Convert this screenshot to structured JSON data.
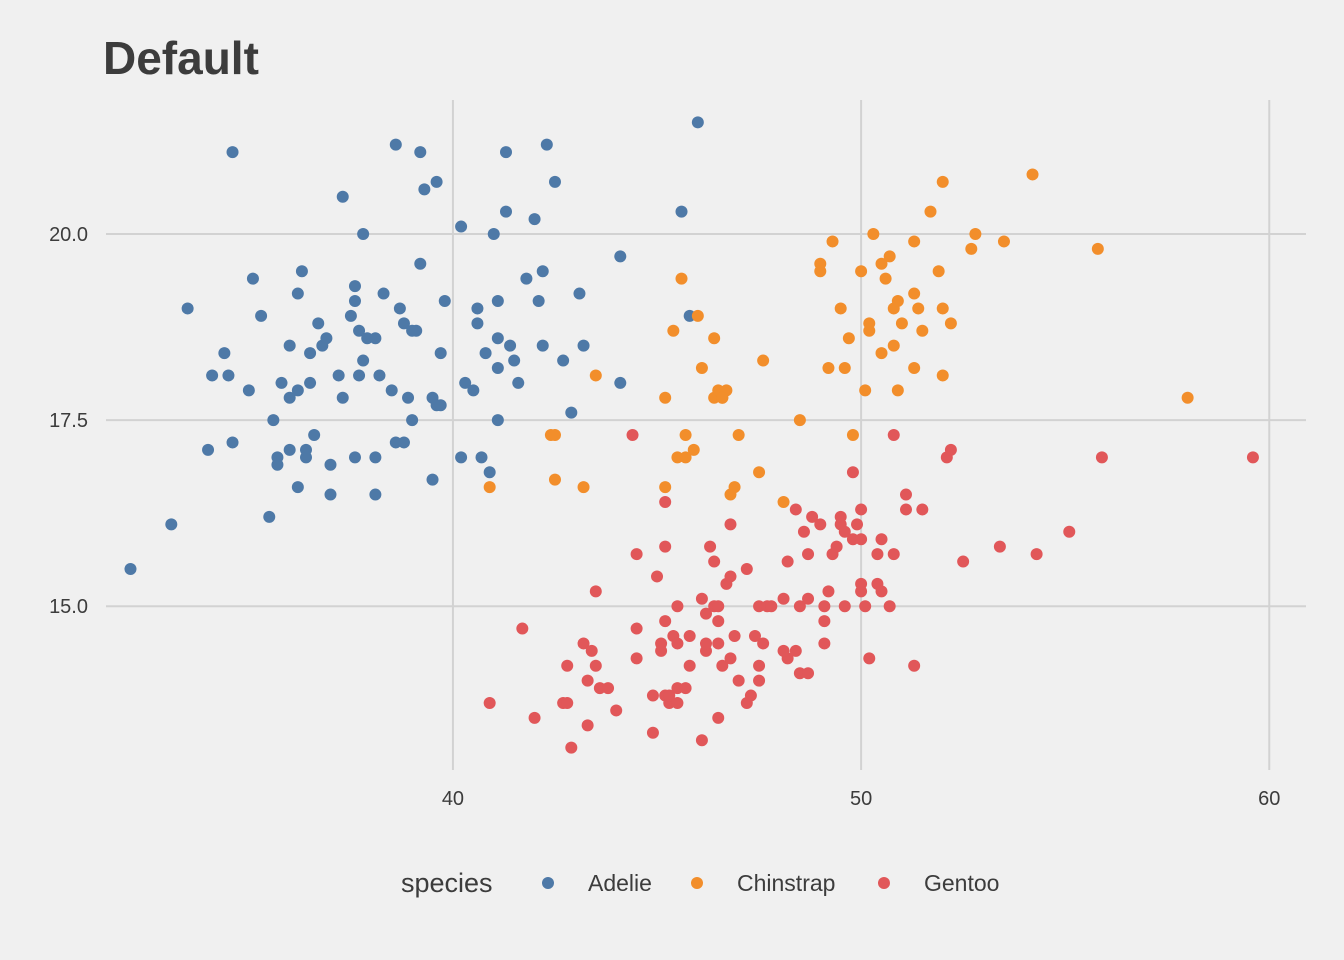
{
  "chart_data": {
    "type": "scatter",
    "title": "Default",
    "xlabel": "",
    "ylabel": "",
    "xlim": [
      31.5,
      60.9
    ],
    "ylim": [
      12.8,
      21.8
    ],
    "x_ticks": [
      40,
      50,
      60
    ],
    "x_tick_labels": [
      "40",
      "50",
      "60"
    ],
    "y_ticks": [
      15,
      17.5,
      20
    ],
    "y_tick_labels": [
      "15.0",
      "17.5",
      "20.0"
    ],
    "grid": true,
    "legend": {
      "position": "bottom",
      "title": "species"
    },
    "series": [
      {
        "name": "Adelie",
        "color": "#4e79a7",
        "points": [
          [
            32.1,
            15.5
          ],
          [
            33.1,
            16.1
          ],
          [
            33.5,
            19.0
          ],
          [
            34.0,
            17.1
          ],
          [
            34.1,
            18.1
          ],
          [
            34.4,
            18.4
          ],
          [
            34.5,
            18.1
          ],
          [
            34.6,
            21.1
          ],
          [
            34.6,
            17.2
          ],
          [
            35.0,
            17.9
          ],
          [
            35.1,
            19.4
          ],
          [
            35.3,
            18.9
          ],
          [
            35.5,
            16.2
          ],
          [
            35.6,
            17.5
          ],
          [
            35.7,
            17.0
          ],
          [
            35.7,
            16.9
          ],
          [
            35.8,
            18.0
          ],
          [
            36.0,
            17.1
          ],
          [
            36.0,
            17.8
          ],
          [
            36.2,
            19.2
          ],
          [
            36.2,
            16.6
          ],
          [
            36.2,
            17.9
          ],
          [
            36.3,
            19.5
          ],
          [
            36.4,
            17.0
          ],
          [
            36.5,
            18.0
          ],
          [
            36.5,
            18.4
          ],
          [
            36.6,
            17.3
          ],
          [
            36.7,
            18.8
          ],
          [
            36.8,
            18.5
          ],
          [
            36.9,
            18.6
          ],
          [
            37.0,
            16.9
          ],
          [
            37.0,
            16.5
          ],
          [
            37.2,
            18.1
          ],
          [
            37.3,
            20.5
          ],
          [
            37.3,
            17.8
          ],
          [
            37.5,
            18.9
          ],
          [
            37.6,
            19.3
          ],
          [
            37.7,
            18.7
          ],
          [
            37.7,
            18.1
          ],
          [
            37.8,
            20.0
          ],
          [
            37.8,
            18.3
          ],
          [
            37.9,
            18.6
          ],
          [
            38.1,
            18.6
          ],
          [
            38.1,
            17.0
          ],
          [
            38.1,
            16.5
          ],
          [
            38.2,
            18.1
          ],
          [
            38.3,
            19.2
          ],
          [
            38.5,
            17.9
          ],
          [
            38.6,
            21.2
          ],
          [
            38.6,
            17.2
          ],
          [
            38.7,
            19.0
          ],
          [
            38.8,
            18.8
          ],
          [
            38.9,
            17.8
          ],
          [
            39.0,
            17.5
          ],
          [
            39.1,
            18.7
          ],
          [
            39.2,
            19.6
          ],
          [
            39.2,
            21.1
          ],
          [
            39.3,
            20.6
          ],
          [
            39.5,
            16.7
          ],
          [
            39.5,
            17.8
          ],
          [
            39.6,
            17.7
          ],
          [
            39.6,
            20.7
          ],
          [
            39.7,
            18.4
          ],
          [
            39.7,
            17.7
          ],
          [
            39.8,
            19.1
          ],
          [
            40.2,
            17.0
          ],
          [
            40.2,
            20.1
          ],
          [
            40.3,
            18.0
          ],
          [
            40.5,
            17.9
          ],
          [
            40.6,
            18.8
          ],
          [
            40.6,
            19.0
          ],
          [
            40.7,
            17.0
          ],
          [
            40.8,
            18.4
          ],
          [
            40.9,
            16.8
          ],
          [
            41.0,
            20.0
          ],
          [
            41.1,
            18.6
          ],
          [
            41.1,
            19.1
          ],
          [
            41.1,
            17.5
          ],
          [
            41.3,
            20.3
          ],
          [
            41.3,
            21.1
          ],
          [
            41.4,
            18.5
          ],
          [
            41.5,
            18.3
          ],
          [
            41.6,
            18.0
          ],
          [
            41.8,
            19.4
          ],
          [
            42.0,
            20.2
          ],
          [
            42.1,
            19.1
          ],
          [
            42.2,
            18.5
          ],
          [
            42.2,
            19.5
          ],
          [
            42.3,
            21.2
          ],
          [
            42.5,
            20.7
          ],
          [
            42.7,
            18.3
          ],
          [
            42.9,
            17.6
          ],
          [
            43.1,
            19.2
          ],
          [
            43.2,
            18.5
          ],
          [
            44.1,
            19.7
          ],
          [
            44.1,
            18.0
          ],
          [
            45.6,
            20.3
          ],
          [
            45.8,
            18.9
          ],
          [
            46.0,
            21.5
          ],
          [
            36.4,
            17.1
          ],
          [
            37.6,
            17.0
          ],
          [
            38.8,
            17.2
          ],
          [
            39.0,
            18.7
          ],
          [
            41.1,
            18.2
          ],
          [
            37.6,
            19.1
          ],
          [
            36.0,
            18.5
          ]
        ]
      },
      {
        "name": "Chinstrap",
        "color": "#f28e2b",
        "points": [
          [
            40.9,
            16.6
          ],
          [
            42.4,
            17.3
          ],
          [
            42.5,
            16.7
          ],
          [
            42.5,
            17.3
          ],
          [
            43.2,
            16.6
          ],
          [
            43.5,
            18.1
          ],
          [
            45.2,
            17.8
          ],
          [
            45.2,
            16.6
          ],
          [
            45.4,
            18.7
          ],
          [
            45.5,
            17.0
          ],
          [
            45.6,
            19.4
          ],
          [
            45.7,
            17.3
          ],
          [
            45.7,
            17.0
          ],
          [
            45.9,
            17.1
          ],
          [
            46.0,
            18.9
          ],
          [
            46.1,
            18.2
          ],
          [
            46.4,
            17.8
          ],
          [
            46.4,
            18.6
          ],
          [
            46.5,
            17.9
          ],
          [
            46.6,
            17.8
          ],
          [
            46.7,
            17.9
          ],
          [
            46.8,
            16.5
          ],
          [
            46.9,
            16.6
          ],
          [
            47.0,
            17.3
          ],
          [
            47.5,
            16.8
          ],
          [
            47.6,
            18.3
          ],
          [
            48.1,
            16.4
          ],
          [
            48.5,
            17.5
          ],
          [
            49.0,
            19.6
          ],
          [
            49.0,
            19.5
          ],
          [
            49.2,
            18.2
          ],
          [
            49.3,
            19.9
          ],
          [
            49.5,
            19.0
          ],
          [
            49.6,
            18.2
          ],
          [
            49.7,
            18.6
          ],
          [
            49.8,
            17.3
          ],
          [
            50.0,
            19.5
          ],
          [
            50.1,
            17.9
          ],
          [
            50.2,
            18.7
          ],
          [
            50.2,
            18.8
          ],
          [
            50.3,
            20.0
          ],
          [
            50.5,
            18.4
          ],
          [
            50.5,
            19.6
          ],
          [
            50.6,
            19.4
          ],
          [
            50.7,
            19.7
          ],
          [
            50.8,
            18.5
          ],
          [
            50.8,
            19.0
          ],
          [
            50.9,
            17.9
          ],
          [
            51.0,
            18.8
          ],
          [
            51.3,
            18.2
          ],
          [
            51.3,
            19.2
          ],
          [
            51.3,
            19.9
          ],
          [
            51.4,
            19.0
          ],
          [
            51.5,
            18.7
          ],
          [
            51.7,
            20.3
          ],
          [
            51.9,
            19.5
          ],
          [
            52.0,
            18.1
          ],
          [
            52.0,
            19.0
          ],
          [
            52.0,
            20.7
          ],
          [
            52.2,
            18.8
          ],
          [
            52.7,
            19.8
          ],
          [
            52.8,
            20.0
          ],
          [
            53.5,
            19.9
          ],
          [
            54.2,
            20.8
          ],
          [
            55.8,
            19.8
          ],
          [
            58.0,
            17.8
          ],
          [
            46.6,
            17.8
          ],
          [
            50.9,
            19.1
          ]
        ]
      },
      {
        "name": "Gentoo",
        "color": "#e15759",
        "points": [
          [
            40.9,
            13.7
          ],
          [
            41.7,
            14.7
          ],
          [
            42.0,
            13.5
          ],
          [
            42.7,
            13.7
          ],
          [
            42.8,
            14.2
          ],
          [
            42.8,
            13.7
          ],
          [
            42.9,
            13.1
          ],
          [
            43.2,
            14.5
          ],
          [
            43.3,
            13.4
          ],
          [
            43.3,
            14.0
          ],
          [
            43.4,
            14.4
          ],
          [
            43.5,
            14.2
          ],
          [
            43.5,
            15.2
          ],
          [
            43.6,
            13.9
          ],
          [
            43.8,
            13.9
          ],
          [
            44.0,
            13.6
          ],
          [
            44.4,
            17.3
          ],
          [
            44.5,
            15.7
          ],
          [
            44.5,
            14.7
          ],
          [
            44.5,
            14.3
          ],
          [
            44.9,
            13.8
          ],
          [
            44.9,
            13.3
          ],
          [
            45.0,
            15.4
          ],
          [
            45.1,
            14.5
          ],
          [
            45.1,
            14.4
          ],
          [
            45.2,
            13.8
          ],
          [
            45.2,
            14.8
          ],
          [
            45.2,
            15.8
          ],
          [
            45.2,
            16.4
          ],
          [
            45.3,
            13.7
          ],
          [
            45.3,
            13.8
          ],
          [
            45.4,
            14.6
          ],
          [
            45.5,
            13.7
          ],
          [
            45.5,
            13.9
          ],
          [
            45.5,
            14.5
          ],
          [
            45.5,
            15.0
          ],
          [
            45.7,
            13.9
          ],
          [
            45.8,
            14.2
          ],
          [
            45.8,
            14.6
          ],
          [
            46.1,
            13.2
          ],
          [
            46.1,
            15.1
          ],
          [
            46.2,
            14.4
          ],
          [
            46.2,
            14.5
          ],
          [
            46.2,
            14.9
          ],
          [
            46.3,
            15.8
          ],
          [
            46.4,
            15.0
          ],
          [
            46.4,
            15.6
          ],
          [
            46.5,
            13.5
          ],
          [
            46.5,
            14.5
          ],
          [
            46.5,
            14.8
          ],
          [
            46.6,
            14.2
          ],
          [
            46.7,
            15.3
          ],
          [
            46.8,
            14.3
          ],
          [
            46.8,
            15.4
          ],
          [
            46.8,
            16.1
          ],
          [
            46.9,
            14.6
          ],
          [
            47.2,
            13.7
          ],
          [
            47.2,
            15.5
          ],
          [
            47.3,
            13.8
          ],
          [
            47.4,
            14.6
          ],
          [
            47.5,
            14.0
          ],
          [
            47.5,
            14.2
          ],
          [
            47.5,
            15.0
          ],
          [
            47.6,
            14.5
          ],
          [
            47.7,
            15.0
          ],
          [
            47.8,
            15.0
          ],
          [
            48.1,
            15.1
          ],
          [
            48.2,
            14.3
          ],
          [
            48.2,
            15.6
          ],
          [
            48.4,
            14.4
          ],
          [
            48.4,
            16.3
          ],
          [
            48.5,
            14.1
          ],
          [
            48.5,
            15.0
          ],
          [
            48.6,
            16.0
          ],
          [
            48.7,
            14.1
          ],
          [
            48.7,
            15.1
          ],
          [
            48.7,
            15.7
          ],
          [
            48.8,
            16.2
          ],
          [
            49.0,
            16.1
          ],
          [
            49.1,
            14.5
          ],
          [
            49.1,
            14.8
          ],
          [
            49.1,
            15.0
          ],
          [
            49.2,
            15.2
          ],
          [
            49.3,
            15.7
          ],
          [
            49.4,
            15.8
          ],
          [
            49.5,
            16.1
          ],
          [
            49.5,
            16.2
          ],
          [
            49.6,
            15.0
          ],
          [
            49.6,
            16.0
          ],
          [
            49.8,
            15.9
          ],
          [
            49.8,
            16.8
          ],
          [
            49.9,
            16.1
          ],
          [
            50.0,
            15.2
          ],
          [
            50.0,
            15.3
          ],
          [
            50.0,
            15.9
          ],
          [
            50.0,
            16.3
          ],
          [
            50.1,
            15.0
          ],
          [
            50.2,
            14.3
          ],
          [
            50.4,
            15.3
          ],
          [
            50.4,
            15.7
          ],
          [
            50.5,
            15.2
          ],
          [
            50.5,
            15.9
          ],
          [
            50.7,
            15.0
          ],
          [
            50.8,
            15.7
          ],
          [
            50.8,
            17.3
          ],
          [
            51.1,
            16.3
          ],
          [
            51.1,
            16.5
          ],
          [
            51.3,
            14.2
          ],
          [
            51.5,
            16.3
          ],
          [
            52.1,
            17.0
          ],
          [
            52.2,
            17.1
          ],
          [
            52.5,
            15.6
          ],
          [
            53.4,
            15.8
          ],
          [
            54.3,
            15.7
          ],
          [
            55.1,
            16.0
          ],
          [
            55.9,
            17.0
          ],
          [
            59.6,
            17.0
          ],
          [
            46.5,
            15.0
          ],
          [
            47.0,
            14.0
          ],
          [
            48.1,
            14.4
          ]
        ]
      }
    ]
  }
}
